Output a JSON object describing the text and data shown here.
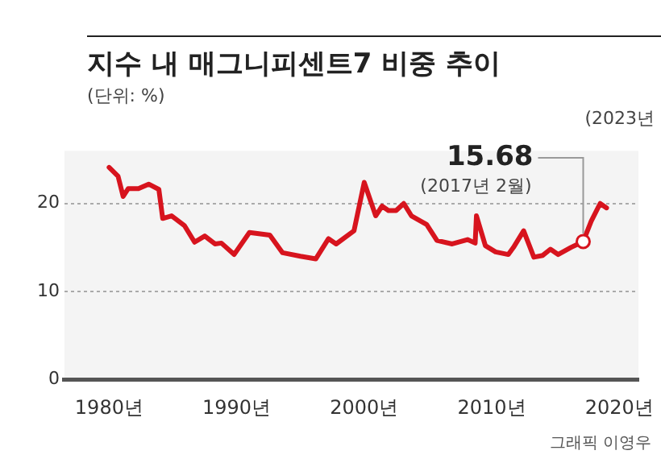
{
  "chart_data": {
    "type": "line",
    "title": "지수 내 매그니피센트7 비중 추이",
    "subtitle": "(단위: %)",
    "x": [
      1980,
      1980.7,
      1981.1,
      1981.5,
      1982.3,
      1983.1,
      1983.9,
      1984.2,
      1984.9,
      1985.9,
      1986.7,
      1987.5,
      1988.3,
      1988.8,
      1989.8,
      1991.0,
      1992.6,
      1993.6,
      1995.0,
      1996.2,
      1997.2,
      1997.8,
      1999.2,
      2000.0,
      2000.9,
      2001.4,
      2001.9,
      2002.5,
      2003.1,
      2003.7,
      2004.9,
      2005.7,
      2006.9,
      2008.1,
      2008.7,
      2008.8,
      2009.5,
      2010.3,
      2011.3,
      2011.7,
      2012.5,
      2013.3,
      2014.0,
      2014.6,
      2015.2,
      2016.2,
      2017.17,
      2017.8,
      2018.5,
      2019.0
    ],
    "series": [
      {
        "color": "#d7141e",
        "values": [
          24.1,
          23.1,
          20.8,
          21.7,
          21.7,
          22.2,
          21.6,
          18.3,
          18.6,
          17.5,
          15.6,
          16.3,
          15.4,
          15.5,
          14.2,
          16.7,
          16.4,
          14.4,
          14.0,
          13.7,
          16.0,
          15.4,
          16.9,
          22.4,
          18.6,
          19.7,
          19.2,
          19.2,
          20.0,
          18.6,
          17.6,
          15.8,
          15.4,
          15.9,
          15.5,
          18.6,
          15.2,
          14.5,
          14.2,
          15.0,
          16.9,
          13.9,
          14.1,
          14.8,
          14.2,
          15.0,
          15.68,
          18.0,
          20.0,
          19.5
        ]
      }
    ],
    "xlim": [
      1976.5,
      2021.5
    ],
    "xticks": [
      {
        "value": 1980,
        "label": "1980년"
      },
      {
        "value": 1990,
        "label": "1990년"
      },
      {
        "value": 2000,
        "label": "2000년"
      },
      {
        "value": 2010,
        "label": "2010년"
      },
      {
        "value": 2020,
        "label": "2020년"
      }
    ],
    "ylim": [
      0,
      26
    ],
    "yticks": [
      0,
      10,
      20
    ],
    "grid": "y",
    "legend": false,
    "marker": "none",
    "line_style": "solid",
    "annotations": [
      {
        "text": "15.68",
        "x": 2017.17,
        "y": 15.68
      },
      {
        "text": "(2017년 2월)",
        "x": 2017.17,
        "y": 15.68
      },
      "(2023년",
      "그래픽 이영우"
    ]
  }
}
